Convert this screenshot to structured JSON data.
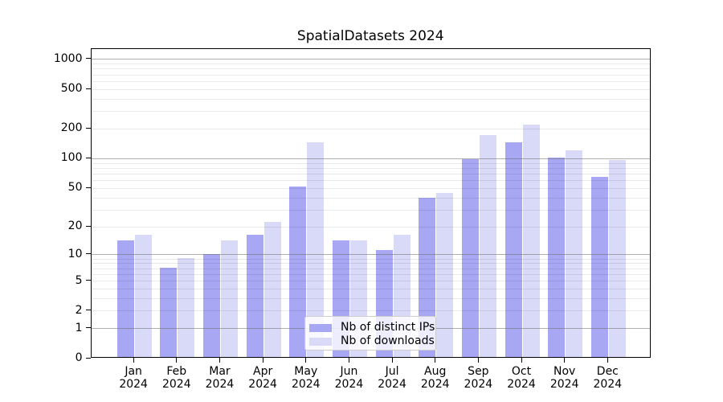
{
  "chart_data": {
    "type": "bar",
    "title": "SpatialDatasets 2024",
    "categories": [
      "Jan",
      "Feb",
      "Mar",
      "Apr",
      "May",
      "Jun",
      "Jul",
      "Aug",
      "Sep",
      "Oct",
      "Nov",
      "Dec"
    ],
    "x_tick_second_line": "2024",
    "series": [
      {
        "name": "Nb of distinct IPs",
        "color": "#a7a7f3",
        "values": [
          14,
          7,
          10,
          16,
          51,
          14,
          11,
          39,
          97,
          143,
          100,
          64
        ]
      },
      {
        "name": "Nb of downloads",
        "color": "#d9d9f8",
        "values": [
          16,
          9,
          14,
          22,
          145,
          14,
          16,
          44,
          170,
          218,
          120,
          96
        ]
      }
    ],
    "xlabel": "",
    "ylabel": "",
    "y_axis": {
      "scale": "log1p",
      "tick_values": [
        0,
        1,
        2,
        5,
        10,
        20,
        50,
        100,
        200,
        500,
        1000
      ],
      "ylim": [
        0,
        1300
      ],
      "major_grid_values": [
        1,
        10,
        100,
        1000
      ]
    },
    "grid": true,
    "legend_position": "lower-center"
  },
  "colors": {
    "major_grid": "#b0b0b0",
    "minor_grid": "#e9e9e9",
    "axis": "#000000",
    "background": "#ffffff"
  }
}
